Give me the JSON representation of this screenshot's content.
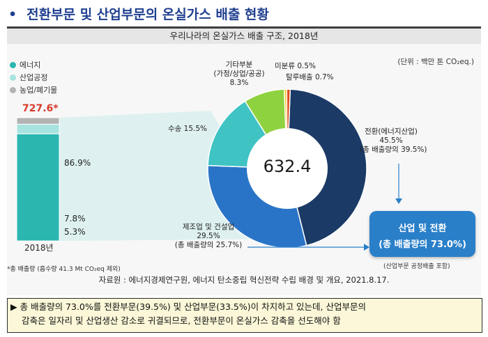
{
  "title": "전환부문 및 산업부문의 온실가스 배출 현황",
  "title_bullet": "•",
  "chart_header": "우리나라의 온실가스 배출 구조, 2018년",
  "unit_label": "(단위 : 백만 톤 CO₂eq.)",
  "colors": {
    "energy": "#2bb6b0",
    "industrial_process": "#a7e3df",
    "agri_waste": "#b3b3b3",
    "transformation": "#1b3a66",
    "manufacturing": "#2a74c7",
    "transport": "#3fc3c3",
    "other": "#8fd23f",
    "unclassified": "#f2c81a",
    "fugitive": "#e04a1c",
    "total_box": "#2a7fc9"
  },
  "chart_data": [
    {
      "type": "bar",
      "stacked": true,
      "categories": [
        "2018년"
      ],
      "total_label": "727.6*",
      "series": [
        {
          "name": "에너지",
          "values": [
            86.9
          ],
          "label": "86.9%"
        },
        {
          "name": "산업공정",
          "values": [
            7.8
          ],
          "label": "7.8%"
        },
        {
          "name": "농업/폐기물",
          "values": [
            5.3
          ],
          "label": "5.3%"
        }
      ],
      "footnote": "*총 배출량 (흡수량 41.3 Mt CO₂eq 제외)"
    },
    {
      "type": "pie",
      "donut": true,
      "center_label": "632.4",
      "slices": [
        {
          "label": "전환(에너지산업)",
          "value": 45.5,
          "value_label": "45.5%",
          "note": "(총 배출량의 39.5%)"
        },
        {
          "label": "제조업 및 건설업",
          "value": 29.5,
          "value_label": "29.5%",
          "note": "(총 배출량의 25.7%)"
        },
        {
          "label": "수송",
          "value": 15.5,
          "value_label": "15.5%"
        },
        {
          "label": "기타부분\n(가정/상업/공공)",
          "value": 8.3,
          "value_label": "8.3%"
        },
        {
          "label": "미분류",
          "value": 0.5,
          "value_label": "0.5%"
        },
        {
          "label": "탈루배출",
          "value": 0.7,
          "value_label": "0.7%"
        }
      ]
    }
  ],
  "legend": [
    {
      "label": "에너지",
      "color_key": "energy"
    },
    {
      "label": "산업공정",
      "color_key": "industrial_process"
    },
    {
      "label": "농업/폐기물",
      "color_key": "agri_waste"
    }
  ],
  "pie_labels": {
    "transformation_name": "전환(에너지산업)",
    "transformation_pct": "45.5%",
    "transformation_note": "(총 배출량의 39.5%)",
    "manufacturing_name": "제조업 및 건설업",
    "manufacturing_pct": "29.5%",
    "manufacturing_note": "(총 배출량의 25.7%)",
    "transport": "수송 15.5%",
    "other_line1": "기타부분",
    "other_line2": "(가정/상업/공공)",
    "other_pct": "8.3%",
    "unclassified": "미분류 0.5%",
    "fugitive": "탈루배출 0.7%"
  },
  "total_box": {
    "line1": "산업 및 전환",
    "line2": "(총 배출량의 73.0%)",
    "note": "(산업부문 공정배출 포함)"
  },
  "source": "자료원 : 에너지경제연구원, 에너지 탄소중립 혁신전략 수립 배경 및 개요, 2021.8.17.",
  "summary": {
    "bullet": "▶",
    "line1": "총 배출량의 73.0%를 전환부문(39.5%) 및 산업부문(33.5%)이 차지하고 있는데, 산업부문의",
    "line2": "감축은 일자리 및 산업생산 감소로 귀결되므로, 전환부문이 온실가스 감축을 선도해야 함"
  }
}
